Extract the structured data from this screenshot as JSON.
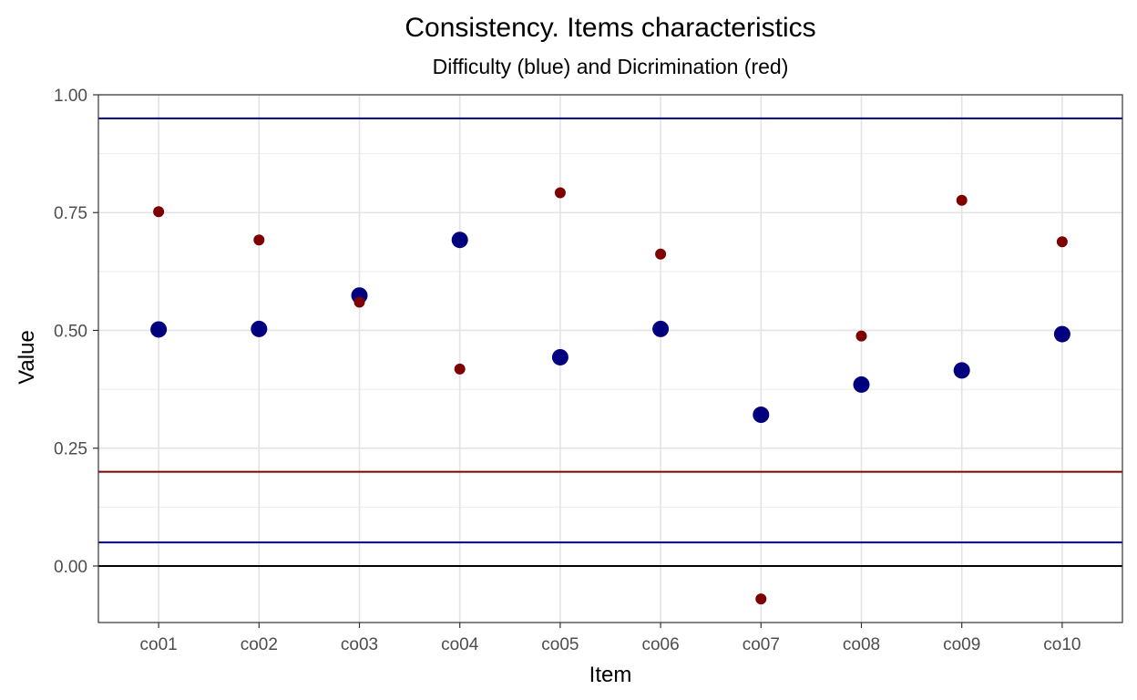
{
  "chart_data": {
    "type": "scatter",
    "title": "Consistency. Items characteristics",
    "subtitle": "Difficulty (blue) and Dicrimination (red)",
    "xlabel": "Item",
    "ylabel": "Value",
    "categories": [
      "co01",
      "co02",
      "co03",
      "co04",
      "co05",
      "co06",
      "co07",
      "co08",
      "co09",
      "co10"
    ],
    "yticks": [
      0.0,
      0.25,
      0.5,
      0.75,
      1.0
    ],
    "ytick_labels": [
      "0.00",
      "0.25",
      "0.50",
      "0.75",
      "1.00"
    ],
    "ylim": [
      -0.12,
      1.0
    ],
    "grid": true,
    "series": [
      {
        "color": "#00007f",
        "marker": "large",
        "values": [
          0.502,
          0.503,
          0.574,
          0.692,
          0.443,
          0.503,
          0.321,
          0.385,
          0.415,
          0.492
        ]
      },
      {
        "color": "#7f0000",
        "marker": "small",
        "values": [
          0.752,
          0.692,
          0.56,
          0.418,
          0.792,
          0.662,
          -0.07,
          0.488,
          0.776,
          0.688
        ]
      }
    ],
    "hlines": [
      {
        "y": 0.95,
        "color": "#00007f"
      },
      {
        "y": 0.2,
        "color": "#7f0000"
      },
      {
        "y": 0.05,
        "color": "#00007f"
      },
      {
        "y": 0.0,
        "color": "#000000"
      }
    ]
  }
}
